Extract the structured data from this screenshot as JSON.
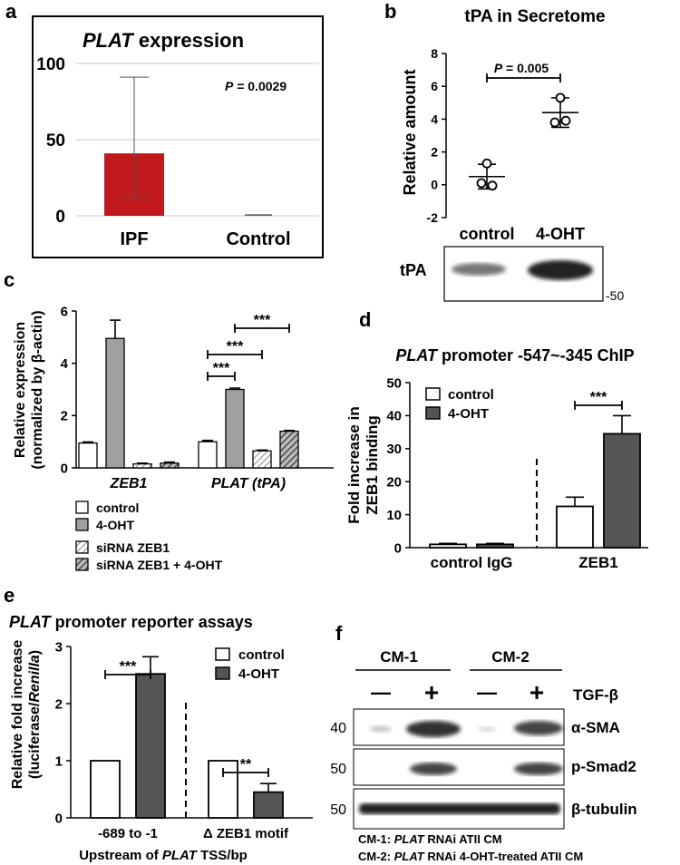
{
  "panels": {
    "a": {
      "letter": "a",
      "title_gene": "PLAT",
      "title_rest": " expression",
      "pvalue_label": "P",
      "pvalue_rest": " = 0.0029"
    },
    "b": {
      "letter": "b",
      "title": "tPA in Secretome",
      "ylabel": "Relative amount",
      "pvalue_label": "P",
      "pvalue_rest": " = 0.005",
      "blot_label": "tPA",
      "marker": "-50"
    },
    "c": {
      "letter": "c",
      "ylabel_1": "Relative expression",
      "ylabel_2": "(normalized by β-actin)",
      "legend": [
        "control",
        "4-OHT",
        "siRNA ZEB1",
        "siRNA ZEB1 + 4-OHT"
      ],
      "sig": [
        "***",
        "***",
        "***"
      ]
    },
    "d": {
      "letter": "d",
      "title_gene": "PLAT",
      "title_rest": " promoter -547~-345 ChIP",
      "ylabel_1": "Fold increase in",
      "ylabel_2": "ZEB1 binding",
      "legend": [
        "control",
        "4-OHT"
      ],
      "sig": "***"
    },
    "e": {
      "letter": "e",
      "title_gene": "PLAT",
      "title_rest": " promoter reporter assays",
      "ylabel_1": "Relative fold increase",
      "ylabel_2a": "(luciferase/",
      "ylabel_2b": "Renilla",
      "ylabel_2c": ")",
      "legend": [
        "control",
        "4-OHT"
      ],
      "sig": [
        "***",
        "**"
      ],
      "xtitle_a": "Upstream of ",
      "xtitle_gene": "PLAT",
      "xtitle_b": " TSS/bp"
    },
    "f": {
      "letter": "f",
      "groups": [
        "CM-1",
        "CM-2"
      ],
      "signs": [
        "—",
        "+",
        "—",
        "+"
      ],
      "treatment": "TGF-β",
      "bands": [
        "α-SMA",
        "p-Smad2",
        "β-tubulin"
      ],
      "markers": [
        "40",
        "50",
        "50"
      ],
      "note1_a": "CM-1: ",
      "note1_gene": "PLAT",
      "note1_b": " RNAi ATII CM",
      "note2_a": "CM-2: ",
      "note2_gene": "PLAT",
      "note2_b": " RNAi 4-OHT-treated ATII CM"
    }
  },
  "chart_data": [
    {
      "panel": "a",
      "type": "bar",
      "categories": [
        "IPF",
        "Control"
      ],
      "values": [
        41,
        0.5
      ],
      "error_upper": [
        91,
        0.5
      ],
      "error_lower": [
        12,
        0.5
      ],
      "ylim": [
        0,
        100
      ],
      "yticks": [
        "0",
        "50",
        "100"
      ],
      "grid": true,
      "colors": [
        "#c0181c",
        "#555555"
      ]
    },
    {
      "panel": "b",
      "type": "scatter",
      "categories": [
        "control",
        "4-OHT"
      ],
      "points": [
        [
          1.3,
          0.1,
          -0.05
        ],
        [
          5.3,
          3.8,
          3.9
        ]
      ],
      "means": [
        0.5,
        4.4
      ],
      "sd": [
        0.75,
        0.9
      ],
      "ylim": [
        -2,
        8
      ],
      "yticks": [
        "-2",
        "0",
        "2",
        "4",
        "6",
        "8"
      ]
    },
    {
      "panel": "c",
      "type": "bar",
      "categories": [
        "ZEB1",
        "PLAT (tPA)"
      ],
      "series": [
        {
          "name": "control",
          "values": [
            0.95,
            1.0
          ],
          "error": [
            0.04,
            0.05
          ],
          "fill": "#ffffff"
        },
        {
          "name": "4-OHT",
          "values": [
            4.95,
            3.0
          ],
          "error": [
            0.7,
            0.05
          ],
          "fill": "#a0a0a0"
        },
        {
          "name": "siRNA ZEB1",
          "values": [
            0.15,
            0.65
          ],
          "error": [
            0.03,
            0.03
          ],
          "fill": "hatch-light"
        },
        {
          "name": "siRNA ZEB1 + 4-OHT",
          "values": [
            0.18,
            1.4
          ],
          "error": [
            0.04,
            0.03
          ],
          "fill": "hatch-dark"
        }
      ],
      "ylim": [
        0,
        6
      ],
      "yticks": [
        "0",
        "2",
        "4",
        "6"
      ]
    },
    {
      "panel": "d",
      "type": "bar",
      "categories": [
        "control IgG",
        "ZEB1"
      ],
      "series": [
        {
          "name": "control",
          "values": [
            1.0,
            12.5
          ],
          "error": [
            0.3,
            2.8
          ],
          "fill": "#ffffff"
        },
        {
          "name": "4-OHT",
          "values": [
            1.0,
            34.5
          ],
          "error": [
            0.3,
            5.5
          ],
          "fill": "#555555"
        }
      ],
      "ylim": [
        0,
        50
      ],
      "yticks": [
        "0",
        "10",
        "20",
        "30",
        "40",
        "50"
      ]
    },
    {
      "panel": "e",
      "type": "bar",
      "categories": [
        "-689 to -1",
        "Δ ZEB1 motif"
      ],
      "series": [
        {
          "name": "control",
          "values": [
            1.0,
            1.0
          ],
          "error": [
            0,
            0
          ],
          "fill": "#ffffff"
        },
        {
          "name": "4-OHT",
          "values": [
            2.52,
            0.45
          ],
          "error": [
            0.3,
            0.15
          ],
          "fill": "#555555"
        }
      ],
      "ylim": [
        0,
        3
      ],
      "yticks": [
        "0",
        "1",
        "2",
        "3"
      ]
    }
  ]
}
